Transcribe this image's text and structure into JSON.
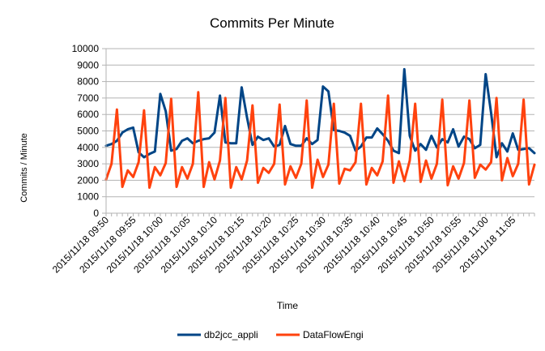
{
  "chart_data": {
    "type": "line",
    "title": "Commits Per Minute",
    "xlabel": "Time",
    "ylabel": "Commits / Minute",
    "ylim": [
      0,
      10000
    ],
    "yticks": [
      0,
      1000,
      2000,
      3000,
      4000,
      5000,
      6000,
      7000,
      8000,
      9000,
      10000
    ],
    "grid": true,
    "legend_position": "bottom",
    "x_tick_labels": [
      "2015/11/18 09:50",
      "2015/11/18 09:55",
      "2015/11/18 10:00",
      "2015/11/18 10:05",
      "2015/11/18 10:10",
      "2015/11/18 10:15",
      "2015/11/18 10:20",
      "2015/11/18 10:25",
      "2015/11/18 10:30",
      "2015/11/18 10:35",
      "2015/11/18 10:40",
      "2015/11/18 10:45",
      "2015/11/18 10:50",
      "2015/11/18 10:55",
      "2015/11/18 11:00",
      "2015/11/18 11:05"
    ],
    "x_start": "2015/11/18 09:50",
    "x_interval_minutes": 1,
    "series": [
      {
        "name": "db2jcc_appli",
        "color": "#004586",
        "values": [
          4100,
          4200,
          4400,
          4900,
          5100,
          5200,
          3700,
          3400,
          3600,
          3750,
          7250,
          6200,
          3800,
          3900,
          4400,
          4550,
          4250,
          4400,
          4500,
          4550,
          4900,
          7150,
          4300,
          4250,
          4250,
          7650,
          5800,
          4150,
          4650,
          4450,
          4550,
          4050,
          4150,
          5300,
          4200,
          4100,
          4100,
          4550,
          4200,
          4450,
          7700,
          7400,
          5050,
          5000,
          4900,
          4700,
          3800,
          4050,
          4600,
          4600,
          5150,
          4800,
          4400,
          3800,
          3650,
          8750,
          4700,
          3800,
          4200,
          3850,
          4700,
          4000,
          4500,
          4300,
          5100,
          4050,
          4650,
          4500,
          3950,
          4150,
          8450,
          6100,
          3400,
          4250,
          3750,
          4850,
          3850,
          3900,
          3950,
          3650
        ]
      },
      {
        "name": "DataFlowEngi",
        "color": "#FF420E",
        "values": [
          2050,
          3000,
          6300,
          1600,
          2600,
          2200,
          3100,
          6250,
          1550,
          2800,
          2300,
          3050,
          6950,
          1600,
          2800,
          2100,
          3000,
          7350,
          1600,
          3100,
          2050,
          3200,
          7000,
          1550,
          2800,
          2050,
          3200,
          6550,
          1850,
          2750,
          2450,
          3000,
          6600,
          1750,
          2850,
          2150,
          3000,
          6850,
          1550,
          3250,
          2200,
          2950,
          6650,
          1800,
          2700,
          2600,
          3100,
          6650,
          1750,
          2750,
          2300,
          3150,
          7150,
          1850,
          3150,
          1950,
          3200,
          6650,
          1900,
          3200,
          2100,
          3000,
          6900,
          1700,
          2850,
          2100,
          3050,
          6850,
          2150,
          2950,
          2650,
          3100,
          7000,
          2000,
          3350,
          2250,
          3000,
          6900,
          1750,
          2950
        ]
      }
    ]
  }
}
